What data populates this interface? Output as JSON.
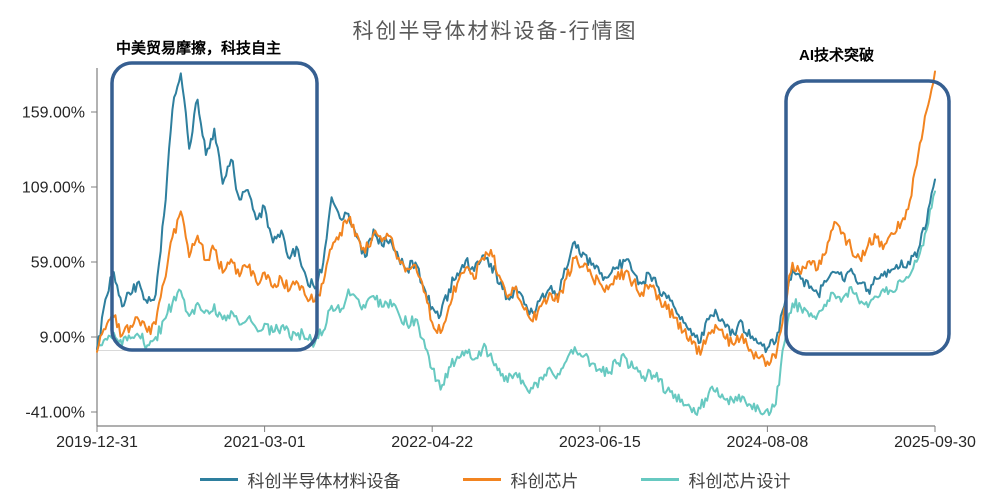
{
  "title": "科创半导体材料设备-行情图",
  "annotations": [
    {
      "label": "中美贸易摩擦，科技自主"
    },
    {
      "label": "AI技术突破"
    }
  ],
  "legend": [
    {
      "label": "科创半导体材料设备",
      "color": "#2e7f9e"
    },
    {
      "label": "科创芯片",
      "color": "#f28420"
    },
    {
      "label": "科创芯片设计",
      "color": "#67c9c1"
    }
  ],
  "colors": {
    "annotation_box": "#365f91",
    "axis": "#7f7f7f",
    "zero_line": "#d9d9d9",
    "title_text": "#595959",
    "tick_text": "#262626"
  },
  "chart_data": {
    "type": "line",
    "title": "科创半导体材料设备-行情图",
    "unit": "%",
    "x_start": "2019-12-31",
    "x_end": "2025-09-30",
    "x_tick_labels": [
      "2019-12-31",
      "2021-03-01",
      "2022-04-22",
      "2023-06-15",
      "2024-08-08",
      "2025-09-30"
    ],
    "y_tick_labels": [
      "-41.00%",
      "9.00%",
      "59.00%",
      "109.00%",
      "159.00%"
    ],
    "y_ticks": [
      -41,
      9,
      59,
      109,
      159
    ],
    "ylim": [
      -50,
      190
    ],
    "zero_line": true,
    "grid": false,
    "legend_position": "bottom",
    "note": "Cumulative return (%) sampled at equal time steps from 2019-12-31 to 2025-09-30",
    "annotations": [
      {
        "label": "中美贸易摩擦，科技自主",
        "region": "early-2020 to mid-2021"
      },
      {
        "label": "AI技术突破",
        "region": "late-2024 to 2025-09"
      }
    ],
    "series": [
      {
        "name": "科创半导体材料设备",
        "color": "#2e7f9e",
        "values": [
          0,
          35,
          52,
          30,
          38,
          45,
          32,
          38,
          90,
          160,
          185,
          135,
          168,
          130,
          148,
          112,
          128,
          100,
          108,
          88,
          95,
          72,
          80,
          62,
          68,
          48,
          42,
          58,
          103,
          88,
          92,
          75,
          62,
          80,
          70,
          74,
          62,
          55,
          58,
          42,
          28,
          24,
          40,
          52,
          60,
          52,
          64,
          58,
          45,
          35,
          42,
          30,
          25,
          35,
          42,
          38,
          55,
          72,
          65,
          58,
          52,
          48,
          55,
          60,
          52,
          45,
          50,
          42,
          35,
          28,
          18,
          10,
          6,
          20,
          24,
          16,
          12,
          18,
          8,
          4,
          2,
          6,
          30,
          55,
          48,
          42,
          38,
          45,
          52,
          48,
          55,
          45,
          40,
          48,
          52,
          55,
          60,
          58,
          68,
          85,
          114
        ]
      },
      {
        "name": "科创芯片",
        "color": "#f28420",
        "values": [
          0,
          15,
          22,
          10,
          16,
          20,
          12,
          18,
          45,
          75,
          93,
          62,
          76,
          60,
          68,
          52,
          60,
          50,
          56,
          46,
          52,
          42,
          48,
          40,
          45,
          36,
          33,
          45,
          68,
          78,
          88,
          78,
          66,
          78,
          72,
          76,
          62,
          55,
          58,
          40,
          18,
          12,
          30,
          45,
          55,
          48,
          62,
          68,
          50,
          35,
          42,
          28,
          20,
          30,
          38,
          33,
          48,
          62,
          56,
          50,
          44,
          40,
          48,
          52,
          45,
          38,
          44,
          36,
          28,
          22,
          12,
          4,
          -2,
          12,
          16,
          8,
          4,
          10,
          0,
          -6,
          -8,
          -4,
          28,
          58,
          52,
          60,
          55,
          65,
          85,
          78,
          68,
          62,
          70,
          75,
          70,
          78,
          85,
          100,
          130,
          160,
          186
        ]
      },
      {
        "name": "科创芯片设计",
        "color": "#67c9c1",
        "values": [
          0,
          8,
          12,
          4,
          8,
          10,
          4,
          8,
          20,
          32,
          40,
          22,
          32,
          26,
          30,
          20,
          26,
          18,
          22,
          14,
          18,
          12,
          16,
          10,
          12,
          8,
          6,
          14,
          30,
          26,
          40,
          34,
          28,
          36,
          30,
          33,
          24,
          18,
          20,
          8,
          -12,
          -26,
          -12,
          -4,
          0,
          -6,
          2,
          -2,
          -12,
          -20,
          -14,
          -22,
          -26,
          -18,
          -12,
          -16,
          -6,
          2,
          -4,
          -8,
          -12,
          -15,
          -8,
          -5,
          -12,
          -18,
          -14,
          -20,
          -26,
          -30,
          -36,
          -42,
          -38,
          -28,
          -25,
          -32,
          -35,
          -30,
          -36,
          -39,
          -40,
          -36,
          5,
          32,
          28,
          22,
          25,
          30,
          38,
          34,
          42,
          32,
          28,
          36,
          40,
          38,
          45,
          50,
          62,
          80,
          106
        ]
      }
    ]
  }
}
